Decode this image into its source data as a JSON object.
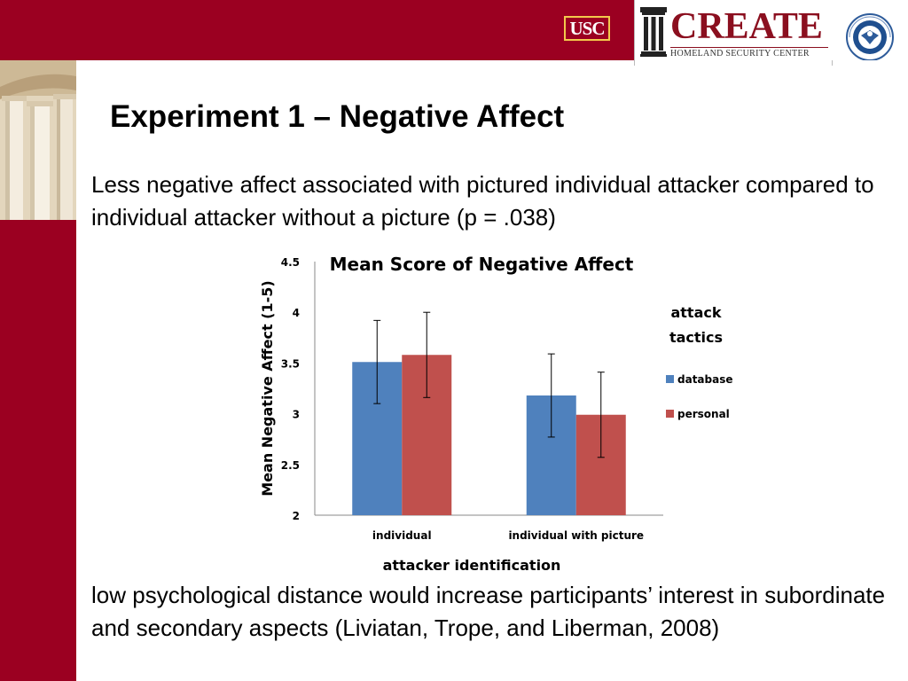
{
  "slide": {
    "title": "Experiment 1 – Negative Affect",
    "text_1": "Less negative affect associated with pictured individual attacker compared to individual attacker without a picture (p = .038)",
    "text_2": "low psychological distance would increase participants’ interest in subordinate and secondary aspects (Liviatan, Trope, and Liberman, 2008)"
  },
  "logos": {
    "usc": "USC",
    "create": "CREATE",
    "create_sub": "HOMELAND SECURITY CENTER"
  },
  "colors": {
    "banner": "#9b0021",
    "database": "#4f81bd",
    "personal": "#c0504d"
  },
  "chart_data": {
    "type": "bar",
    "title": "Mean Score of Negative Affect",
    "xlabel": "attacker identification",
    "ylabel": "Mean Negative Affect (1-5)",
    "ylim": [
      2,
      4.5
    ],
    "yticks": [
      "2",
      "2.5",
      "3",
      "3.5",
      "4",
      "4.5"
    ],
    "categories": [
      "individual",
      "individual with picture"
    ],
    "legend_title": "attack tactics",
    "legend_position": "right",
    "series": [
      {
        "name": "database",
        "values": [
          3.51,
          3.18
        ],
        "error": [
          0.41,
          0.41
        ]
      },
      {
        "name": "personal",
        "values": [
          3.58,
          2.99
        ],
        "error": [
          0.42,
          0.42
        ]
      }
    ]
  }
}
